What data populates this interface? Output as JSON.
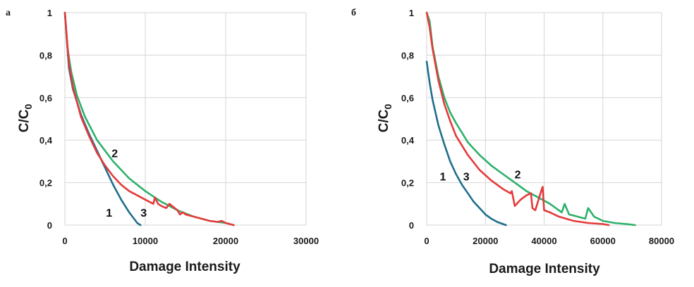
{
  "colors": {
    "series1": "#1f6f8b",
    "series2": "#2eb06b",
    "series3": "#e53a3a",
    "grid": "#d6d6d6",
    "text": "#1a1a1a"
  },
  "chart_data": [
    {
      "type": "line",
      "panel_label": "a",
      "xlabel": "Damage Intensity",
      "ylabel_main": "C/C",
      "ylabel_sub": "0",
      "xlim": [
        0,
        30000
      ],
      "ylim": [
        0,
        1
      ],
      "xticks": [
        "0",
        "10000",
        "20000",
        "30000"
      ],
      "yticks": [
        "0",
        "0,2",
        "0,4",
        "0,6",
        "0,8",
        "1"
      ],
      "grid": true,
      "series": [
        {
          "name": "1",
          "color": "series1",
          "label_at": [
            5500,
            0.06
          ],
          "x": [
            0,
            500,
            1000,
            2000,
            3000,
            4000,
            5000,
            6000,
            7000,
            8000,
            9000,
            9400
          ],
          "y": [
            1.0,
            0.74,
            0.64,
            0.52,
            0.43,
            0.35,
            0.27,
            0.19,
            0.12,
            0.06,
            0.01,
            0
          ]
        },
        {
          "name": "2",
          "color": "series2",
          "label_at": [
            6200,
            0.34
          ],
          "x": [
            0,
            300,
            800,
            1500,
            2500,
            4000,
            6000,
            8000,
            10000,
            12000,
            14000,
            16000,
            18000,
            20000,
            21000
          ],
          "y": [
            1.0,
            0.84,
            0.72,
            0.61,
            0.51,
            0.4,
            0.3,
            0.22,
            0.16,
            0.11,
            0.07,
            0.04,
            0.02,
            0.01,
            0
          ]
        },
        {
          "name": "3",
          "color": "series3",
          "label_at": [
            9800,
            0.06
          ],
          "x": [
            0,
            500,
            1000,
            2000,
            3000,
            4000,
            5000,
            6000,
            7000,
            8000,
            9000,
            10000,
            11000,
            11200,
            11600,
            12000,
            12600,
            13000,
            14000,
            14300,
            14700,
            15000,
            16000,
            17000,
            18000,
            19000,
            19500,
            20000,
            21000
          ],
          "y": [
            1.0,
            0.76,
            0.65,
            0.51,
            0.42,
            0.34,
            0.28,
            0.23,
            0.19,
            0.16,
            0.14,
            0.12,
            0.1,
            0.13,
            0.1,
            0.09,
            0.08,
            0.1,
            0.07,
            0.05,
            0.06,
            0.05,
            0.04,
            0.03,
            0.02,
            0.015,
            0.02,
            0.01,
            0
          ]
        }
      ]
    },
    {
      "type": "line",
      "panel_label": "б",
      "xlabel": "Damage Intensity",
      "ylabel_main": "C/C",
      "ylabel_sub": "0",
      "xlim": [
        0,
        80000
      ],
      "ylim": [
        0,
        1
      ],
      "xticks": [
        "0",
        "20000",
        "40000",
        "60000",
        "80000"
      ],
      "yticks": [
        "0",
        "0,2",
        "0,4",
        "0,6",
        "0,8",
        "1"
      ],
      "grid": true,
      "series": [
        {
          "name": "1",
          "color": "series1",
          "label_at": [
            5500,
            0.23
          ],
          "x": [
            0,
            1000,
            2000,
            4000,
            6000,
            8000,
            10000,
            12000,
            14000,
            16000,
            18000,
            20000,
            22000,
            24000,
            26000,
            27000
          ],
          "y": [
            0.77,
            0.67,
            0.59,
            0.47,
            0.38,
            0.3,
            0.24,
            0.19,
            0.15,
            0.11,
            0.08,
            0.05,
            0.03,
            0.015,
            0.005,
            0
          ]
        },
        {
          "name": "2",
          "color": "series2",
          "label_at": [
            31000,
            0.24
          ],
          "x": [
            0,
            1000,
            2000,
            4000,
            6000,
            8000,
            10000,
            14000,
            18000,
            22000,
            26000,
            30000,
            34000,
            38000,
            42000,
            46000,
            47000,
            48500,
            50000,
            54000,
            55000,
            57000,
            60000,
            64000,
            68000,
            71000
          ],
          "y": [
            1.0,
            0.96,
            0.84,
            0.7,
            0.6,
            0.53,
            0.48,
            0.39,
            0.33,
            0.28,
            0.24,
            0.2,
            0.16,
            0.13,
            0.1,
            0.06,
            0.1,
            0.05,
            0.045,
            0.03,
            0.08,
            0.04,
            0.02,
            0.01,
            0.005,
            0
          ]
        },
        {
          "name": "3",
          "color": "series3",
          "label_at": [
            13500,
            0.23
          ],
          "x": [
            0,
            1000,
            2000,
            4000,
            6000,
            8000,
            10000,
            14000,
            18000,
            22000,
            26000,
            28500,
            29000,
            30000,
            32000,
            34000,
            35500,
            36000,
            37000,
            39000,
            39500,
            40000,
            42000,
            45000,
            50000,
            55000,
            60000,
            62000
          ],
          "y": [
            1.0,
            0.93,
            0.83,
            0.68,
            0.57,
            0.49,
            0.42,
            0.33,
            0.26,
            0.21,
            0.17,
            0.15,
            0.16,
            0.09,
            0.12,
            0.14,
            0.15,
            0.08,
            0.07,
            0.16,
            0.18,
            0.07,
            0.06,
            0.04,
            0.02,
            0.01,
            0.005,
            0
          ]
        }
      ]
    }
  ]
}
